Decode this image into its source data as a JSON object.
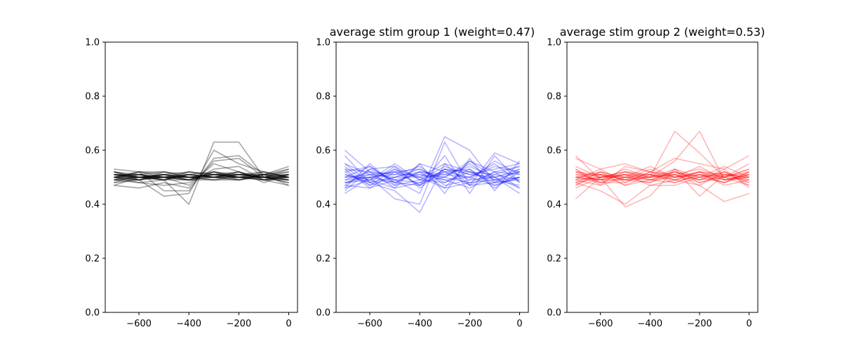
{
  "figure": {
    "background": "#ffffff"
  },
  "chart_data": [
    {
      "type": "line",
      "title": "",
      "xlabel": "",
      "ylabel": "",
      "xlim": [
        -735,
        35
      ],
      "ylim": [
        0,
        1
      ],
      "xticks": [
        -600,
        -400,
        -200,
        0
      ],
      "xtick_labels": [
        "−600",
        "−400",
        "−200",
        "0"
      ],
      "yticks": [
        0.0,
        0.2,
        0.4,
        0.6,
        0.8,
        1.0
      ],
      "ytick_labels": [
        "0.0",
        "0.2",
        "0.4",
        "0.6",
        "0.8",
        "1.0"
      ],
      "grid": false,
      "color": "#000000",
      "line_opacity": 0.35,
      "x": [
        -700,
        -600,
        -500,
        -400,
        -300,
        -200,
        -100,
        0
      ],
      "series": [
        {
          "values": [
            0.51,
            0.5,
            0.49,
            0.4,
            0.63,
            0.63,
            0.5,
            0.49
          ]
        },
        {
          "values": [
            0.5,
            0.49,
            0.43,
            0.44,
            0.6,
            0.55,
            0.52,
            0.5
          ]
        },
        {
          "values": [
            0.53,
            0.52,
            0.45,
            0.45,
            0.57,
            0.58,
            0.51,
            0.54
          ]
        },
        {
          "values": [
            0.47,
            0.46,
            0.48,
            0.46,
            0.56,
            0.57,
            0.5,
            0.49
          ]
        },
        {
          "values": [
            0.52,
            0.5,
            0.5,
            0.47,
            0.55,
            0.52,
            0.48,
            0.51
          ]
        },
        {
          "values": [
            0.49,
            0.48,
            0.47,
            0.48,
            0.53,
            0.54,
            0.49,
            0.47
          ]
        },
        {
          "values": [
            0.5,
            0.51,
            0.49,
            0.49,
            0.52,
            0.5,
            0.51,
            0.5
          ]
        },
        {
          "values": [
            0.51,
            0.5,
            0.51,
            0.5,
            0.51,
            0.51,
            0.5,
            0.51
          ]
        },
        {
          "values": [
            0.48,
            0.49,
            0.5,
            0.49,
            0.5,
            0.5,
            0.51,
            0.49
          ]
        },
        {
          "values": [
            0.5,
            0.5,
            0.5,
            0.5,
            0.51,
            0.5,
            0.49,
            0.5
          ]
        },
        {
          "values": [
            0.51,
            0.51,
            0.49,
            0.51,
            0.5,
            0.51,
            0.5,
            0.52
          ]
        },
        {
          "values": [
            0.49,
            0.5,
            0.51,
            0.5,
            0.49,
            0.49,
            0.51,
            0.5
          ]
        },
        {
          "values": [
            0.52,
            0.49,
            0.5,
            0.52,
            0.51,
            0.5,
            0.5,
            0.5
          ]
        },
        {
          "values": [
            0.5,
            0.52,
            0.52,
            0.51,
            0.5,
            0.52,
            0.49,
            0.51
          ]
        },
        {
          "values": [
            0.48,
            0.51,
            0.5,
            0.49,
            0.52,
            0.49,
            0.5,
            0.48
          ]
        },
        {
          "values": [
            0.51,
            0.49,
            0.52,
            0.5,
            0.49,
            0.51,
            0.51,
            0.53
          ]
        },
        {
          "values": [
            0.5,
            0.5,
            0.49,
            0.52,
            0.5,
            0.5,
            0.52,
            0.5
          ]
        },
        {
          "values": [
            0.49,
            0.52,
            0.51,
            0.5,
            0.51,
            0.5,
            0.5,
            0.49
          ]
        },
        {
          "values": [
            0.52,
            0.5,
            0.5,
            0.51,
            0.5,
            0.52,
            0.49,
            0.51
          ]
        },
        {
          "values": [
            0.5,
            0.49,
            0.51,
            0.49,
            0.52,
            0.51,
            0.5,
            0.5
          ]
        },
        {
          "values": [
            0.47,
            0.5,
            0.5,
            0.51,
            0.5,
            0.49,
            0.51,
            0.47
          ]
        },
        {
          "values": [
            0.51,
            0.51,
            0.52,
            0.5,
            0.51,
            0.5,
            0.5,
            0.53
          ]
        },
        {
          "values": [
            0.5,
            0.48,
            0.49,
            0.51,
            0.5,
            0.51,
            0.51,
            0.51
          ]
        },
        {
          "values": [
            0.52,
            0.51,
            0.5,
            0.49,
            0.49,
            0.5,
            0.49,
            0.49
          ]
        },
        {
          "values": [
            0.49,
            0.5,
            0.51,
            0.52,
            0.51,
            0.51,
            0.5,
            0.5
          ]
        },
        {
          "values": [
            0.5,
            0.52,
            0.5,
            0.5,
            0.5,
            0.49,
            0.51,
            0.52
          ]
        },
        {
          "values": [
            0.51,
            0.5,
            0.49,
            0.51,
            0.52,
            0.5,
            0.5,
            0.48
          ]
        },
        {
          "values": [
            0.5,
            0.51,
            0.5,
            0.5,
            0.5,
            0.51,
            0.52,
            0.5
          ]
        },
        {
          "values": [
            0.49,
            0.49,
            0.51,
            0.49,
            0.51,
            0.52,
            0.5,
            0.51
          ]
        },
        {
          "values": [
            0.51,
            0.5,
            0.5,
            0.5,
            0.5,
            0.5,
            0.49,
            0.5
          ]
        }
      ]
    },
    {
      "type": "line",
      "title": "average stim group 1 (weight=0.47)",
      "xlabel": "",
      "ylabel": "",
      "xlim": [
        -735,
        35
      ],
      "ylim": [
        0,
        1
      ],
      "xticks": [
        -600,
        -400,
        -200,
        0
      ],
      "xtick_labels": [
        "−600",
        "−400",
        "−200",
        "0"
      ],
      "yticks": [
        0.0,
        0.2,
        0.4,
        0.6,
        0.8,
        1.0
      ],
      "ytick_labels": [
        "0.0",
        "0.2",
        "0.4",
        "0.6",
        "0.8",
        "1.0"
      ],
      "grid": false,
      "color": "#0000ff",
      "line_opacity": 0.28,
      "x": [
        -700,
        -600,
        -500,
        -400,
        -300,
        -200,
        -100,
        0
      ],
      "series": [
        {
          "values": [
            0.6,
            0.52,
            0.49,
            0.44,
            0.65,
            0.6,
            0.48,
            0.5
          ]
        },
        {
          "values": [
            0.58,
            0.48,
            0.45,
            0.37,
            0.55,
            0.52,
            0.49,
            0.52
          ]
        },
        {
          "values": [
            0.44,
            0.5,
            0.42,
            0.4,
            0.63,
            0.47,
            0.59,
            0.55
          ]
        },
        {
          "values": [
            0.46,
            0.55,
            0.47,
            0.55,
            0.44,
            0.57,
            0.45,
            0.56
          ]
        },
        {
          "values": [
            0.52,
            0.47,
            0.53,
            0.47,
            0.58,
            0.44,
            0.58,
            0.48
          ]
        },
        {
          "values": [
            0.5,
            0.54,
            0.48,
            0.52,
            0.46,
            0.56,
            0.5,
            0.44
          ]
        },
        {
          "values": [
            0.48,
            0.49,
            0.55,
            0.49,
            0.52,
            0.5,
            0.54,
            0.52
          ]
        },
        {
          "values": [
            0.55,
            0.51,
            0.5,
            0.53,
            0.48,
            0.53,
            0.47,
            0.5
          ]
        },
        {
          "values": [
            0.47,
            0.46,
            0.52,
            0.5,
            0.55,
            0.47,
            0.52,
            0.54
          ]
        },
        {
          "values": [
            0.53,
            0.52,
            0.46,
            0.48,
            0.5,
            0.55,
            0.49,
            0.47
          ]
        },
        {
          "values": [
            0.49,
            0.5,
            0.51,
            0.54,
            0.47,
            0.49,
            0.56,
            0.51
          ]
        },
        {
          "values": [
            0.51,
            0.48,
            0.54,
            0.46,
            0.53,
            0.52,
            0.48,
            0.53
          ]
        },
        {
          "values": [
            0.45,
            0.53,
            0.49,
            0.51,
            0.49,
            0.46,
            0.51,
            0.49
          ]
        },
        {
          "values": [
            0.54,
            0.47,
            0.5,
            0.52,
            0.51,
            0.54,
            0.5,
            0.46
          ]
        },
        {
          "values": [
            0.5,
            0.51,
            0.47,
            0.49,
            0.54,
            0.51,
            0.53,
            0.55
          ]
        },
        {
          "values": [
            0.46,
            0.49,
            0.53,
            0.5,
            0.46,
            0.48,
            0.49,
            0.5
          ]
        },
        {
          "values": [
            0.52,
            0.54,
            0.48,
            0.47,
            0.52,
            0.53,
            0.46,
            0.52
          ]
        },
        {
          "values": [
            0.48,
            0.5,
            0.52,
            0.53,
            0.49,
            0.5,
            0.55,
            0.48
          ]
        },
        {
          "values": [
            0.53,
            0.46,
            0.49,
            0.48,
            0.53,
            0.49,
            0.5,
            0.53
          ]
        },
        {
          "values": [
            0.49,
            0.52,
            0.51,
            0.51,
            0.5,
            0.56,
            0.52,
            0.51
          ]
        },
        {
          "values": [
            0.51,
            0.49,
            0.46,
            0.55,
            0.52,
            0.47,
            0.48,
            0.49
          ]
        },
        {
          "values": [
            0.47,
            0.53,
            0.54,
            0.49,
            0.48,
            0.52,
            0.51,
            0.54
          ]
        },
        {
          "values": [
            0.55,
            0.48,
            0.5,
            0.5,
            0.51,
            0.5,
            0.47,
            0.5
          ]
        },
        {
          "values": [
            0.5,
            0.5,
            0.48,
            0.52,
            0.5,
            0.48,
            0.52,
            0.46
          ]
        },
        {
          "values": [
            0.48,
            0.51,
            0.52,
            0.47,
            0.53,
            0.51,
            0.5,
            0.52
          ]
        }
      ]
    },
    {
      "type": "line",
      "title": "average stim group 2 (weight=0.53)",
      "xlabel": "",
      "ylabel": "",
      "xlim": [
        -735,
        35
      ],
      "ylim": [
        0,
        1
      ],
      "xticks": [
        -600,
        -400,
        -200,
        0
      ],
      "xtick_labels": [
        "−600",
        "−400",
        "−200",
        "0"
      ],
      "yticks": [
        0.0,
        0.2,
        0.4,
        0.6,
        0.8,
        1.0
      ],
      "ytick_labels": [
        "0.0",
        "0.2",
        "0.4",
        "0.6",
        "0.8",
        "1.0"
      ],
      "grid": false,
      "color": "#ff0000",
      "line_opacity": 0.28,
      "x": [
        -700,
        -600,
        -500,
        -400,
        -300,
        -200,
        -100,
        0
      ],
      "series": [
        {
          "values": [
            0.58,
            0.49,
            0.51,
            0.5,
            0.67,
            0.59,
            0.5,
            0.52
          ]
        },
        {
          "values": [
            0.5,
            0.52,
            0.49,
            0.5,
            0.56,
            0.67,
            0.49,
            0.5
          ]
        },
        {
          "values": [
            0.42,
            0.5,
            0.39,
            0.43,
            0.53,
            0.43,
            0.51,
            0.48
          ]
        },
        {
          "values": [
            0.48,
            0.45,
            0.4,
            0.47,
            0.49,
            0.47,
            0.41,
            0.44
          ]
        },
        {
          "values": [
            0.57,
            0.53,
            0.55,
            0.52,
            0.57,
            0.55,
            0.53,
            0.58
          ]
        },
        {
          "values": [
            0.52,
            0.48,
            0.5,
            0.54,
            0.5,
            0.52,
            0.49,
            0.51
          ]
        },
        {
          "values": [
            0.5,
            0.51,
            0.47,
            0.49,
            0.52,
            0.49,
            0.52,
            0.49
          ]
        },
        {
          "values": [
            0.46,
            0.5,
            0.52,
            0.51,
            0.48,
            0.51,
            0.48,
            0.52
          ]
        },
        {
          "values": [
            0.53,
            0.47,
            0.5,
            0.48,
            0.51,
            0.53,
            0.5,
            0.47
          ]
        },
        {
          "values": [
            0.49,
            0.53,
            0.48,
            0.52,
            0.49,
            0.5,
            0.54,
            0.5
          ]
        },
        {
          "values": [
            0.51,
            0.49,
            0.53,
            0.5,
            0.53,
            0.48,
            0.5,
            0.53
          ]
        },
        {
          "values": [
            0.47,
            0.51,
            0.49,
            0.53,
            0.5,
            0.52,
            0.47,
            0.49
          ]
        },
        {
          "values": [
            0.52,
            0.5,
            0.51,
            0.47,
            0.47,
            0.5,
            0.51,
            0.51
          ]
        },
        {
          "values": [
            0.5,
            0.48,
            0.52,
            0.5,
            0.52,
            0.49,
            0.53,
            0.46
          ]
        },
        {
          "values": [
            0.48,
            0.52,
            0.47,
            0.51,
            0.5,
            0.54,
            0.49,
            0.5
          ]
        },
        {
          "values": [
            0.54,
            0.5,
            0.5,
            0.49,
            0.48,
            0.51,
            0.5,
            0.55
          ]
        },
        {
          "values": [
            0.49,
            0.47,
            0.54,
            0.52,
            0.51,
            0.47,
            0.52,
            0.48
          ]
        },
        {
          "values": [
            0.51,
            0.51,
            0.49,
            0.48,
            0.53,
            0.5,
            0.48,
            0.52
          ]
        },
        {
          "values": [
            0.5,
            0.49,
            0.51,
            0.51,
            0.49,
            0.52,
            0.51,
            0.5
          ]
        },
        {
          "values": [
            0.47,
            0.52,
            0.5,
            0.5,
            0.51,
            0.49,
            0.5,
            0.49
          ]
        },
        {
          "values": [
            0.53,
            0.48,
            0.48,
            0.52,
            0.5,
            0.51,
            0.49,
            0.51
          ]
        },
        {
          "values": [
            0.49,
            0.5,
            0.52,
            0.49,
            0.52,
            0.5,
            0.52,
            0.47
          ]
        },
        {
          "values": [
            0.52,
            0.51,
            0.5,
            0.51,
            0.49,
            0.52,
            0.5,
            0.53
          ]
        },
        {
          "values": [
            0.5,
            0.49,
            0.49,
            0.5,
            0.51,
            0.48,
            0.51,
            0.5
          ]
        },
        {
          "values": [
            0.48,
            0.5,
            0.51,
            0.49,
            0.5,
            0.51,
            0.48,
            0.51
          ]
        }
      ]
    }
  ]
}
